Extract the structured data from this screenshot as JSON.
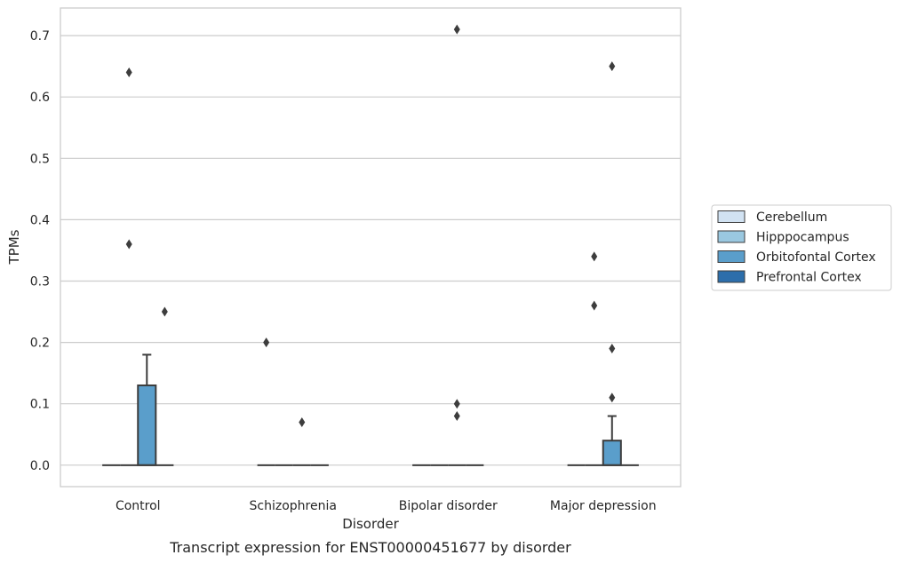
{
  "chart_data": {
    "type": "box",
    "title": "",
    "caption": "Transcript expression for ENST00000451677 by disorder",
    "xlabel": "Disorder",
    "ylabel": "TPMs",
    "ylim": [
      -0.035,
      0.745
    ],
    "yticks": [
      0.0,
      0.1,
      0.2,
      0.3,
      0.4,
      0.5,
      0.6,
      0.7
    ],
    "ytick_labels": [
      "0.0",
      "0.1",
      "0.2",
      "0.3",
      "0.4",
      "0.5",
      "0.6",
      "0.7"
    ],
    "grid": "horizontal",
    "legend_position": "right",
    "categories": [
      "Control",
      "Schizophrenia",
      "Bipolar disorder",
      "Major depression"
    ],
    "series": [
      {
        "name": "Cerebellum",
        "color": "#d1e2f2",
        "boxes": [
          {
            "q1": 0,
            "median": 0,
            "q3": 0,
            "whisker_low": 0,
            "whisker_high": 0,
            "outliers": []
          },
          {
            "q1": 0,
            "median": 0,
            "q3": 0,
            "whisker_low": 0,
            "whisker_high": 0,
            "outliers": [
              0.2
            ]
          },
          {
            "q1": 0,
            "median": 0,
            "q3": 0,
            "whisker_low": 0,
            "whisker_high": 0,
            "outliers": []
          },
          {
            "q1": 0,
            "median": 0,
            "q3": 0,
            "whisker_low": 0,
            "whisker_high": 0,
            "outliers": []
          }
        ]
      },
      {
        "name": "Hipppocampus",
        "color": "#9ac8e0",
        "boxes": [
          {
            "q1": 0,
            "median": 0,
            "q3": 0,
            "whisker_low": 0,
            "whisker_high": 0,
            "outliers": [
              0.64,
              0.36
            ]
          },
          {
            "q1": 0,
            "median": 0,
            "q3": 0,
            "whisker_low": 0,
            "whisker_high": 0,
            "outliers": []
          },
          {
            "q1": 0,
            "median": 0,
            "q3": 0,
            "whisker_low": 0,
            "whisker_high": 0,
            "outliers": []
          },
          {
            "q1": 0,
            "median": 0,
            "q3": 0,
            "whisker_low": 0,
            "whisker_high": 0,
            "outliers": [
              0.34,
              0.26
            ]
          }
        ]
      },
      {
        "name": "Orbitofontal Cortex",
        "color": "#5a9ecb",
        "boxes": [
          {
            "q1": 0,
            "median": 0,
            "q3": 0.13,
            "whisker_low": 0,
            "whisker_high": 0.18,
            "outliers": []
          },
          {
            "q1": 0,
            "median": 0,
            "q3": 0,
            "whisker_low": 0,
            "whisker_high": 0,
            "outliers": [
              0.07
            ]
          },
          {
            "q1": 0,
            "median": 0,
            "q3": 0,
            "whisker_low": 0,
            "whisker_high": 0,
            "outliers": [
              0.71,
              0.1,
              0.08
            ]
          },
          {
            "q1": 0,
            "median": 0,
            "q3": 0.04,
            "whisker_low": 0,
            "whisker_high": 0.08,
            "outliers": [
              0.65,
              0.19,
              0.11
            ]
          }
        ]
      },
      {
        "name": "Prefrontal Cortex",
        "color": "#2c6eab",
        "boxes": [
          {
            "q1": 0,
            "median": 0,
            "q3": 0,
            "whisker_low": 0,
            "whisker_high": 0,
            "outliers": [
              0.25
            ]
          },
          {
            "q1": 0,
            "median": 0,
            "q3": 0,
            "whisker_low": 0,
            "whisker_high": 0,
            "outliers": []
          },
          {
            "q1": 0,
            "median": 0,
            "q3": 0,
            "whisker_low": 0,
            "whisker_high": 0,
            "outliers": []
          },
          {
            "q1": 0,
            "median": 0,
            "q3": 0,
            "whisker_low": 0,
            "whisker_high": 0,
            "outliers": []
          }
        ]
      }
    ]
  }
}
